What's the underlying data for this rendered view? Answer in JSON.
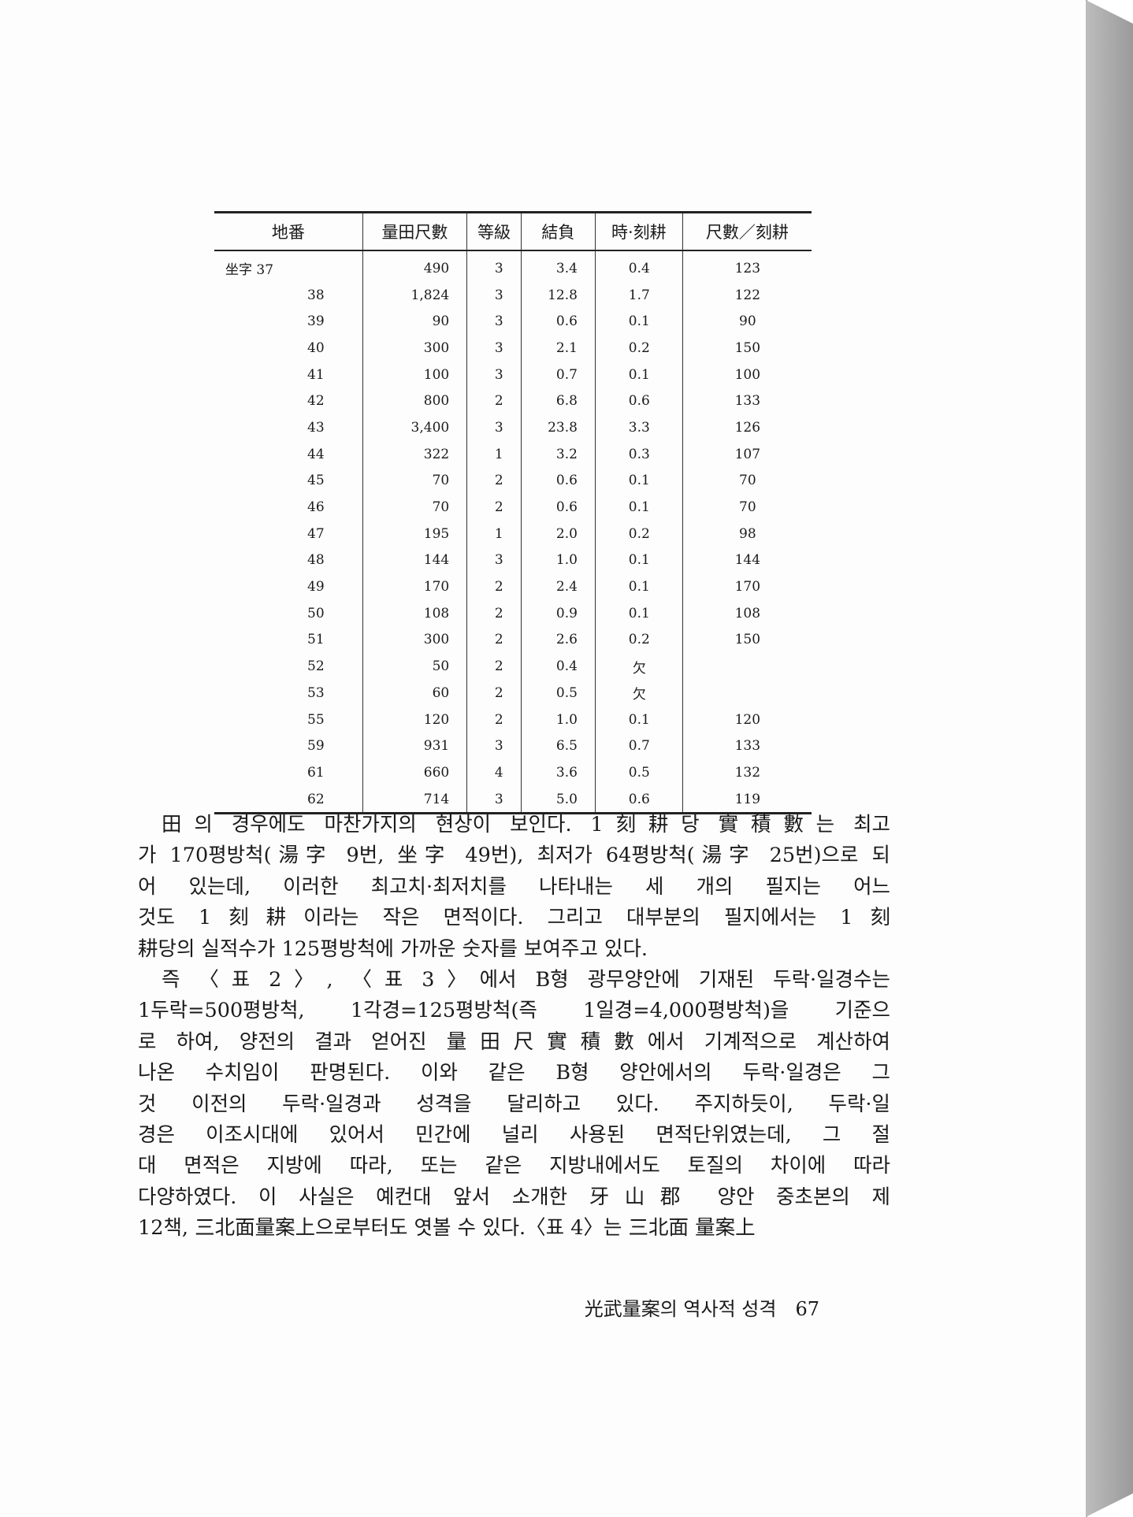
{
  "table": {
    "headers": [
      "地番",
      "量田尺數",
      "等級",
      "結負",
      "時·刻耕",
      "尺數／刻耕"
    ],
    "rows": [
      [
        "坐字 37",
        "490",
        "3",
        "3.4",
        "0.4",
        "123"
      ],
      [
        "38",
        "1,824",
        "3",
        "12.8",
        "1.7",
        "122"
      ],
      [
        "39",
        "90",
        "3",
        "0.6",
        "0.1",
        "90"
      ],
      [
        "40",
        "300",
        "3",
        "2.1",
        "0.2",
        "150"
      ],
      [
        "41",
        "100",
        "3",
        "0.7",
        "0.1",
        "100"
      ],
      [
        "42",
        "800",
        "2",
        "6.8",
        "0.6",
        "133"
      ],
      [
        "43",
        "3,400",
        "3",
        "23.8",
        "3.3",
        "126"
      ],
      [
        "44",
        "322",
        "1",
        "3.2",
        "0.3",
        "107"
      ],
      [
        "45",
        "70",
        "2",
        "0.6",
        "0.1",
        "70"
      ],
      [
        "46",
        "70",
        "2",
        "0.6",
        "0.1",
        "70"
      ],
      [
        "47",
        "195",
        "1",
        "2.0",
        "0.2",
        "98"
      ],
      [
        "48",
        "144",
        "3",
        "1.0",
        "0.1",
        "144"
      ],
      [
        "49",
        "170",
        "2",
        "2.4",
        "0.1",
        "170"
      ],
      [
        "50",
        "108",
        "2",
        "0.9",
        "0.1",
        "108"
      ],
      [
        "51",
        "300",
        "2",
        "2.6",
        "0.2",
        "150"
      ],
      [
        "52",
        "50",
        "2",
        "0.4",
        "欠",
        ""
      ],
      [
        "53",
        "60",
        "2",
        "0.5",
        "欠",
        ""
      ],
      [
        "55",
        "120",
        "2",
        "1.0",
        "0.1",
        "120"
      ],
      [
        "59",
        "931",
        "3",
        "6.5",
        "0.7",
        "133"
      ],
      [
        "61",
        "660",
        "4",
        "3.6",
        "0.5",
        "132"
      ],
      [
        "62",
        "714",
        "3",
        "5.0",
        "0.6",
        "119"
      ]
    ]
  },
  "paragraphs": [
    [
      "田의 경우에도 마찬가지의 현상이 보인다. 1刻耕당 實積數는 최고",
      "가 170평방척(湯字 9번, 坐字 49번), 최저가 64평방척(湯字 25번)으로 되",
      "어 있는데, 이러한 최고치·최저치를 나타내는 세 개의 필지는 어느",
      "것도 1刻耕이라는 작은 면적이다. 그리고 대부분의 필지에서는 1刻",
      "耕당의 실적수가 125평방척에 가까운 숫자를 보여주고 있다."
    ],
    [
      "즉 〈표 2〉, 〈표 3〉에서 B형 광무양안에 기재된 두락·일경수는",
      "1두락=500평방척, 1각경=125평방척(즉 1일경=4,000평방척)을 기준으",
      "로 하여, 양전의 결과 얻어진 量田尺實積數에서 기계적으로 계산하여",
      "나온 수치임이 판명된다. 이와 같은 B형 양안에서의 두락·일경은 그",
      "것 이전의 두락·일경과 성격을 달리하고 있다. 주지하듯이, 두락·일",
      "경은 이조시대에 있어서 민간에 널리 사용된 면적단위였는데, 그 절",
      "대 면적은 지방에 따라, 또는 같은 지방내에서도 토질의 차이에 따라",
      "다양하였다. 이 사실은 예컨대 앞서 소개한 牙山郡 양안 중초본의 제",
      "12책, 三北面量案上으로부터도 엿볼 수 있다.〈표 4〉는 三北面 量案上"
    ]
  ],
  "footer": {
    "running_title": "光武量案의 역사적 성격",
    "page_number": "67"
  }
}
